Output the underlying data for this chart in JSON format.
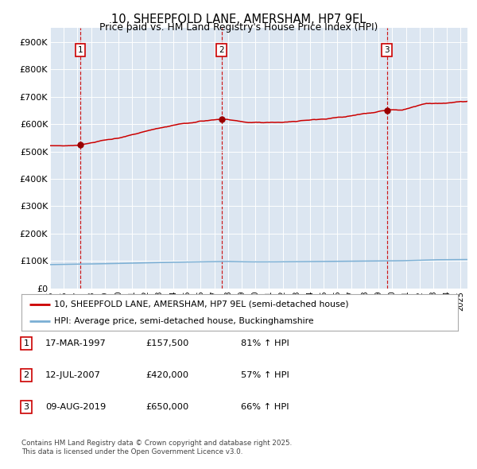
{
  "title": "10, SHEEPFOLD LANE, AMERSHAM, HP7 9EL",
  "subtitle": "Price paid vs. HM Land Registry's House Price Index (HPI)",
  "plot_bg_color": "#dce6f1",
  "red_line_color": "#cc0000",
  "blue_line_color": "#7bafd4",
  "dashed_line_color": "#cc0000",
  "sale_marker_color": "#990000",
  "legend_label_red": "10, SHEEPFOLD LANE, AMERSHAM, HP7 9EL (semi-detached house)",
  "legend_label_blue": "HPI: Average price, semi-detached house, Buckinghamshire",
  "footer": "Contains HM Land Registry data © Crown copyright and database right 2025.\nThis data is licensed under the Open Government Licence v3.0.",
  "sales": [
    {
      "num": 1,
      "date": "17-MAR-1997",
      "price": 157500,
      "hpi_pct": "81% ↑ HPI",
      "year_x": 1997.21
    },
    {
      "num": 2,
      "date": "12-JUL-2007",
      "price": 420000,
      "hpi_pct": "57% ↑ HPI",
      "year_x": 2007.53
    },
    {
      "num": 3,
      "date": "09-AUG-2019",
      "price": 650000,
      "hpi_pct": "66% ↑ HPI",
      "year_x": 2019.61
    }
  ],
  "ylim": [
    0,
    950000
  ],
  "xlim_start": 1995.0,
  "xlim_end": 2025.5,
  "yticks": [
    0,
    100000,
    200000,
    300000,
    400000,
    500000,
    600000,
    700000,
    800000,
    900000
  ],
  "ytick_labels": [
    "£0",
    "£100K",
    "£200K",
    "£300K",
    "£400K",
    "£500K",
    "£600K",
    "£700K",
    "£800K",
    "£900K"
  ],
  "xticks": [
    1995,
    1996,
    1997,
    1998,
    1999,
    2000,
    2001,
    2002,
    2003,
    2004,
    2005,
    2006,
    2007,
    2008,
    2009,
    2010,
    2011,
    2012,
    2013,
    2014,
    2015,
    2016,
    2017,
    2018,
    2019,
    2020,
    2021,
    2022,
    2023,
    2024,
    2025
  ]
}
